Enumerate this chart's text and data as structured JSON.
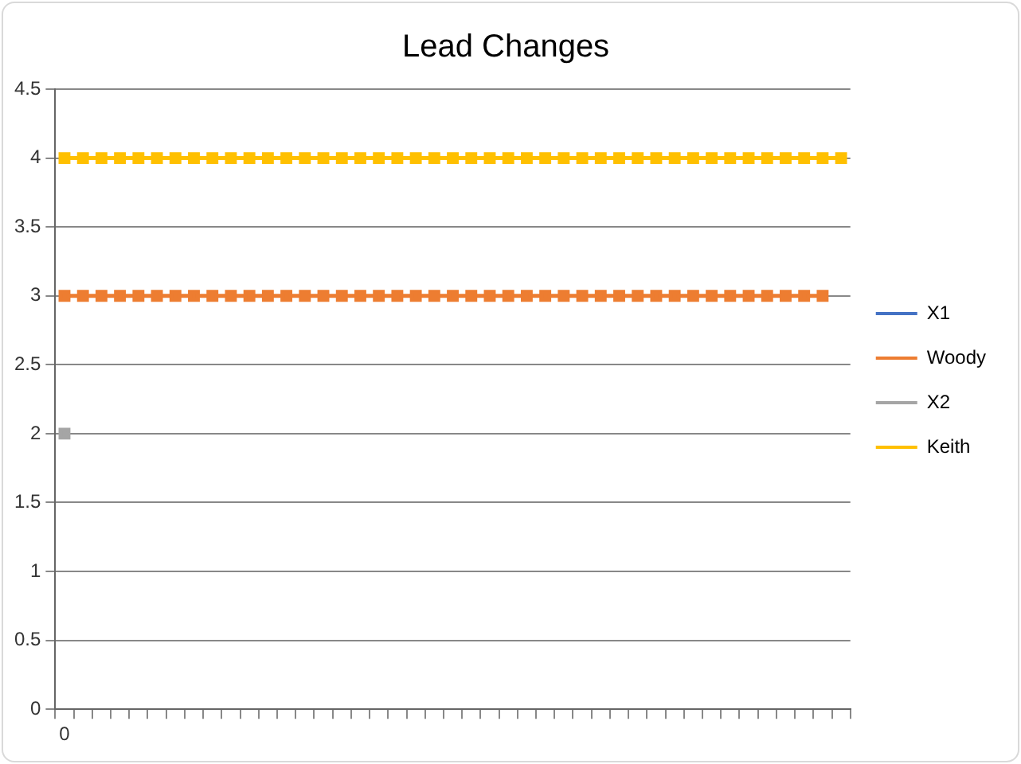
{
  "chart_data": {
    "type": "line",
    "title": "Lead Changes",
    "categories": [
      "0",
      null,
      null,
      null,
      null,
      null,
      null,
      null,
      null,
      null,
      null,
      null,
      null,
      null,
      null,
      null,
      null,
      null,
      null,
      null,
      null,
      null,
      null,
      null,
      null,
      null,
      null,
      null,
      null,
      null,
      null,
      null,
      null,
      null,
      null,
      null,
      null,
      null,
      null,
      null,
      null,
      null,
      null
    ],
    "series": [
      {
        "name": "X1",
        "color": "#4472c4",
        "values": [
          null,
          null,
          null,
          null,
          null,
          null,
          null,
          null,
          null,
          null,
          null,
          null,
          null,
          null,
          null,
          null,
          null,
          null,
          null,
          null,
          null,
          null,
          null,
          null,
          null,
          null,
          null,
          null,
          null,
          null,
          null,
          null,
          null,
          null,
          null,
          null,
          null,
          null,
          null,
          null,
          null,
          null,
          null
        ]
      },
      {
        "name": "Woody",
        "color": "#ed7d31",
        "values": [
          3,
          3,
          3,
          3,
          3,
          3,
          3,
          3,
          3,
          3,
          3,
          3,
          3,
          3,
          3,
          3,
          3,
          3,
          3,
          3,
          3,
          3,
          3,
          3,
          3,
          3,
          3,
          3,
          3,
          3,
          3,
          3,
          3,
          3,
          3,
          3,
          3,
          3,
          3,
          3,
          3,
          3,
          null
        ]
      },
      {
        "name": "X2",
        "color": "#a5a5a5",
        "values": [
          2,
          null,
          null,
          null,
          null,
          null,
          null,
          null,
          null,
          null,
          null,
          null,
          null,
          null,
          null,
          null,
          null,
          null,
          null,
          null,
          null,
          null,
          null,
          null,
          null,
          null,
          null,
          null,
          null,
          null,
          null,
          null,
          null,
          null,
          null,
          null,
          null,
          null,
          null,
          null,
          null,
          null,
          null
        ]
      },
      {
        "name": "Keith",
        "color": "#ffc000",
        "values": [
          4,
          4,
          4,
          4,
          4,
          4,
          4,
          4,
          4,
          4,
          4,
          4,
          4,
          4,
          4,
          4,
          4,
          4,
          4,
          4,
          4,
          4,
          4,
          4,
          4,
          4,
          4,
          4,
          4,
          4,
          4,
          4,
          4,
          4,
          4,
          4,
          4,
          4,
          4,
          4,
          4,
          4,
          4
        ]
      }
    ],
    "ylim": [
      0,
      4.5
    ],
    "yticks": [
      0,
      0.5,
      1,
      1.5,
      2,
      2.5,
      3,
      3.5,
      4,
      4.5
    ],
    "grid": "y",
    "legend": "right",
    "marker": "square",
    "line_style": "solid"
  }
}
